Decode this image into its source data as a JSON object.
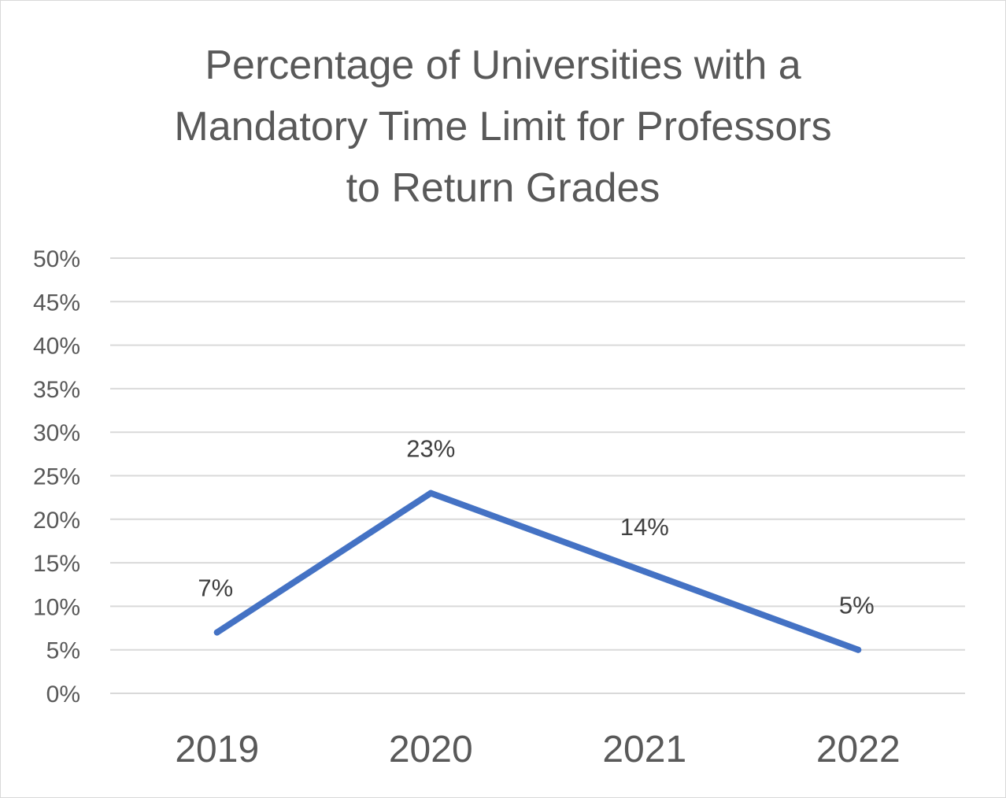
{
  "chart_data": {
    "type": "line",
    "title": "Percentage of Universities with a\nMandatory Time Limit for Professors\nto Return Grades",
    "categories": [
      "2019",
      "2020",
      "2021",
      "2022"
    ],
    "series": [
      {
        "values": [
          7,
          23,
          14,
          5
        ],
        "color": "#4472c4"
      }
    ],
    "data_labels": [
      "7%",
      "23%",
      "14%",
      "5%"
    ],
    "yticks": [
      0,
      5,
      10,
      15,
      20,
      25,
      30,
      35,
      40,
      45,
      50
    ],
    "ytick_labels": [
      "0%",
      "5%",
      "10%",
      "15%",
      "20%",
      "25%",
      "30%",
      "35%",
      "40%",
      "45%",
      "50%"
    ],
    "ylim": [
      0,
      50
    ],
    "grid": true,
    "legend": "none"
  }
}
